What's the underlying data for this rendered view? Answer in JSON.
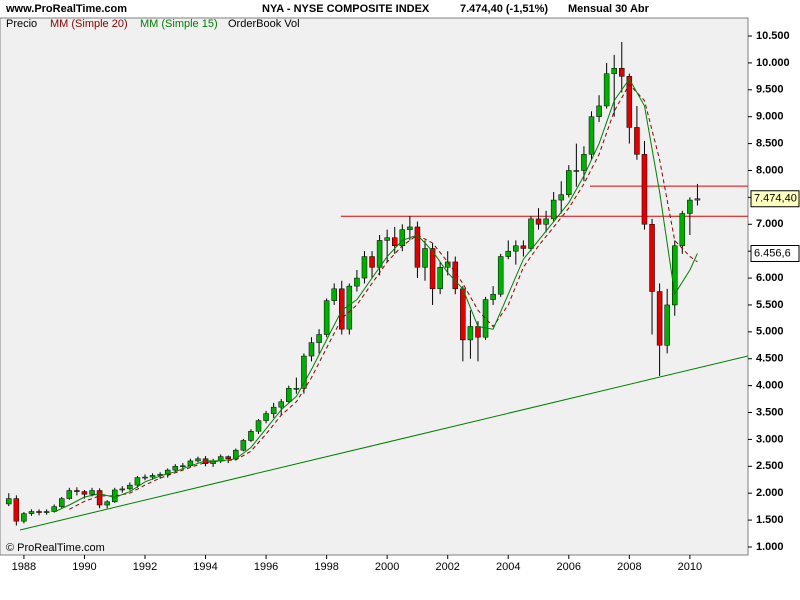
{
  "chart_data": {
    "type": "candlestick",
    "site": "www.ProRealTime.com",
    "title": "NYA - NYSE COMPOSITE INDEX",
    "last": "7.474,40 (-1,51%)",
    "period": "Mensual  30 Abr",
    "copyright": "© ProRealTime.com",
    "extra_legend": "OrderBook Vol",
    "candles": {
      "name": "Precio",
      "up_color": "#00b000",
      "down_color": "#e00000",
      "x": [
        1987.5,
        1987.75,
        1988,
        1988.25,
        1988.5,
        1988.75,
        1989,
        1989.25,
        1989.5,
        1989.75,
        1990,
        1990.25,
        1990.5,
        1990.75,
        1991,
        1991.25,
        1991.5,
        1991.75,
        1992,
        1992.25,
        1992.5,
        1992.75,
        1993,
        1993.25,
        1993.5,
        1993.75,
        1994,
        1994.25,
        1994.5,
        1994.75,
        1995,
        1995.25,
        1995.5,
        1995.75,
        1996,
        1996.25,
        1996.5,
        1996.75,
        1997,
        1997.25,
        1997.5,
        1997.75,
        1998,
        1998.25,
        1998.5,
        1998.75,
        1999,
        1999.25,
        1999.5,
        1999.75,
        2000,
        2000.25,
        2000.5,
        2000.75,
        2001,
        2001.25,
        2001.5,
        2001.75,
        2002,
        2002.25,
        2002.5,
        2002.75,
        2003,
        2003.25,
        2003.5,
        2003.75,
        2004,
        2004.25,
        2004.5,
        2004.75,
        2005,
        2005.25,
        2005.5,
        2005.75,
        2006,
        2006.25,
        2006.5,
        2006.75,
        2007,
        2007.25,
        2007.5,
        2007.75,
        2008,
        2008.25,
        2008.5,
        2008.75,
        2009,
        2009.25,
        2009.5,
        2009.75,
        2010,
        2010.25
      ],
      "open": [
        1800,
        1900,
        1480,
        1620,
        1660,
        1640,
        1660,
        1750,
        1900,
        2050,
        2030,
        1980,
        2050,
        1780,
        1840,
        2060,
        2080,
        2150,
        2290,
        2300,
        2330,
        2350,
        2430,
        2500,
        2510,
        2600,
        2640,
        2550,
        2600,
        2680,
        2640,
        2800,
        2980,
        3150,
        3350,
        3480,
        3600,
        3700,
        3950,
        3950,
        4550,
        4800,
        4950,
        5580,
        5800,
        5050,
        5850,
        6000,
        6400,
        6200,
        6700,
        6750,
        6600,
        6900,
        6950,
        6200,
        6550,
        5800,
        6200,
        6300,
        5800,
        4850,
        5100,
        4900,
        5600,
        5700,
        6400,
        6500,
        6600,
        6550,
        7100,
        7000,
        7100,
        7450,
        7550,
        8000,
        8000,
        8300,
        9000,
        9200,
        9800,
        9900,
        9750,
        8800,
        8300,
        7000,
        5750,
        4750,
        5500,
        6600,
        7200,
        7450
      ],
      "high": [
        2000,
        1960,
        1650,
        1700,
        1700,
        1700,
        1790,
        1930,
        2100,
        2110,
        2060,
        2100,
        2090,
        1870,
        2100,
        2130,
        2200,
        2320,
        2350,
        2370,
        2390,
        2460,
        2540,
        2560,
        2640,
        2680,
        2690,
        2640,
        2720,
        2700,
        2830,
        3010,
        3190,
        3380,
        3530,
        3680,
        3750,
        4000,
        4150,
        4600,
        4900,
        5050,
        5620,
        5900,
        5950,
        5900,
        6150,
        6500,
        6500,
        6800,
        6900,
        6950,
        7000,
        7150,
        7050,
        6700,
        6650,
        6300,
        6500,
        6400,
        5850,
        5400,
        5200,
        5650,
        5850,
        6450,
        6700,
        6700,
        6700,
        7150,
        7300,
        7250,
        7600,
        7800,
        8100,
        8500,
        8450,
        9100,
        9400,
        10000,
        10150,
        10390,
        9800,
        9200,
        8550,
        7100,
        5900,
        5800,
        6700,
        7250,
        7500,
        7750
      ],
      "low": [
        1760,
        1400,
        1440,
        1580,
        1590,
        1600,
        1640,
        1720,
        1880,
        1960,
        1900,
        1940,
        1720,
        1720,
        1820,
        2010,
        2050,
        2100,
        2240,
        2250,
        2270,
        2290,
        2400,
        2450,
        2480,
        2570,
        2500,
        2490,
        2560,
        2560,
        2610,
        2780,
        2950,
        3100,
        3300,
        3400,
        3450,
        3680,
        3850,
        3850,
        4450,
        4600,
        4900,
        5500,
        4950,
        4950,
        5750,
        5900,
        6000,
        6050,
        6300,
        6450,
        6500,
        6700,
        6000,
        5950,
        5500,
        5700,
        6050,
        5700,
        4450,
        4500,
        4450,
        4850,
        5500,
        5650,
        6350,
        6250,
        6400,
        6500,
        6900,
        6850,
        7050,
        7200,
        7500,
        7700,
        7800,
        8200,
        8900,
        9150,
        9000,
        9450,
        8500,
        8200,
        6900,
        4950,
        4180,
        4600,
        5300,
        6450,
        6800,
        7350
      ],
      "close": [
        1900,
        1480,
        1620,
        1660,
        1640,
        1660,
        1750,
        1900,
        2050,
        2030,
        1980,
        2050,
        1780,
        1840,
        2060,
        2080,
        2150,
        2290,
        2300,
        2330,
        2350,
        2430,
        2500,
        2510,
        2600,
        2640,
        2550,
        2600,
        2680,
        2640,
        2800,
        2980,
        3150,
        3350,
        3480,
        3600,
        3700,
        3950,
        3950,
        4550,
        4800,
        4950,
        5580,
        5800,
        5050,
        5850,
        6000,
        6400,
        6200,
        6700,
        6750,
        6600,
        6900,
        6950,
        6200,
        6550,
        5800,
        6200,
        6300,
        5800,
        4850,
        5100,
        4900,
        5600,
        5700,
        6400,
        6500,
        6600,
        6550,
        7100,
        7000,
        7100,
        7450,
        7550,
        8000,
        8000,
        8300,
        9000,
        9200,
        9800,
        9900,
        9750,
        8800,
        8300,
        7000,
        5750,
        4750,
        5500,
        6600,
        7200,
        7450,
        7474.4
      ]
    },
    "series": [
      {
        "name": "MM (Simple 20)",
        "color": "#8b0000",
        "dashed": true,
        "x": [
          1989.5,
          1990,
          1990.5,
          1991,
          1991.5,
          1992,
          1992.5,
          1993,
          1993.5,
          1994,
          1994.5,
          1995,
          1995.5,
          1996,
          1996.5,
          1997,
          1997.5,
          1998,
          1998.5,
          1999,
          1999.5,
          2000,
          2000.5,
          2001,
          2001.5,
          2002,
          2002.5,
          2003,
          2003.5,
          2004,
          2004.5,
          2005,
          2005.5,
          2006,
          2006.5,
          2007,
          2007.5,
          2008,
          2008.5,
          2009,
          2009.5,
          2010,
          2010.25
        ],
        "values": [
          1700,
          1850,
          1950,
          1950,
          2000,
          2150,
          2280,
          2380,
          2480,
          2570,
          2600,
          2620,
          2780,
          3100,
          3450,
          3700,
          4150,
          4700,
          5250,
          5500,
          5900,
          6300,
          6600,
          6800,
          6650,
          6300,
          5900,
          5400,
          5100,
          5500,
          6200,
          6600,
          6950,
          7300,
          7750,
          8300,
          9100,
          9600,
          9300,
          8200,
          6700,
          6400,
          6300
        ]
      },
      {
        "name": "MM (Simple 15)",
        "color": "#008000",
        "dashed": false,
        "x": [
          1989,
          1989.5,
          1990,
          1990.5,
          1991,
          1991.5,
          1992,
          1992.5,
          1993,
          1993.5,
          1994,
          1994.5,
          1995,
          1995.5,
          1996,
          1996.5,
          1997,
          1997.5,
          1998,
          1998.5,
          1999,
          1999.5,
          2000,
          2000.5,
          2001,
          2001.5,
          2002,
          2002.5,
          2003,
          2003.5,
          2004,
          2004.5,
          2005,
          2005.5,
          2006,
          2006.5,
          2007,
          2007.5,
          2008,
          2008.5,
          2009,
          2009.5,
          2010,
          2010.25
        ],
        "values": [
          1650,
          1780,
          1930,
          1990,
          1920,
          2030,
          2210,
          2320,
          2400,
          2510,
          2600,
          2600,
          2640,
          2850,
          3200,
          3550,
          3800,
          4300,
          4850,
          5400,
          5600,
          6000,
          6400,
          6700,
          6800,
          6500,
          6100,
          5800,
          5100,
          5050,
          5700,
          6350,
          6700,
          7050,
          7400,
          7900,
          8500,
          9300,
          9700,
          9200,
          7600,
          5700,
          6150,
          6456.6
        ]
      }
    ],
    "lines": [
      {
        "color": "#e00000",
        "x": [
          1998.47,
          2011.92
        ],
        "y": [
          7150,
          7150
        ]
      },
      {
        "color": "#e00000",
        "x": [
          2006.7,
          2011.92
        ],
        "y": [
          7710,
          7710
        ]
      },
      {
        "color": "#008000",
        "x": [
          1987.87,
          2011.92
        ],
        "y": [
          1316,
          4552
        ]
      }
    ],
    "price_labels": [
      {
        "value": 7474.4,
        "label": "7.474,40",
        "color": "#ffffc0"
      },
      {
        "value": 6456.6,
        "label": "6.456,6",
        "color": "#ffffff"
      }
    ],
    "xlim": [
      1987.21,
      2011.92
    ],
    "xticks": [
      1988,
      1990,
      1992,
      1994,
      1996,
      1998,
      2000,
      2002,
      2004,
      2006,
      2008,
      2010
    ],
    "ylim": [
      851,
      10835
    ],
    "yticks": [
      {
        "value": 1000,
        "label": "1.000"
      },
      {
        "value": 1500,
        "label": "1.500"
      },
      {
        "value": 2000,
        "label": "2.000"
      },
      {
        "value": 2500,
        "label": "2.500"
      },
      {
        "value": 3000,
        "label": "3.000"
      },
      {
        "value": 3500,
        "label": "3.500"
      },
      {
        "value": 4000,
        "label": "4.000"
      },
      {
        "value": 4500,
        "label": "4.500"
      },
      {
        "value": 5000,
        "label": "5.000"
      },
      {
        "value": 5500,
        "label": "5.500"
      },
      {
        "value": 6000,
        "label": "6.000"
      },
      {
        "value": 6500,
        "label": "6.500"
      },
      {
        "value": 7000,
        "label": "7.000"
      },
      {
        "value": 7500,
        "label": "7.500"
      },
      {
        "value": 8000,
        "label": "8.000"
      },
      {
        "value": 8500,
        "label": "8.500"
      },
      {
        "value": 9000,
        "label": "9.000"
      },
      {
        "value": 9500,
        "label": "9.500"
      },
      {
        "value": 10000,
        "label": "10.000"
      },
      {
        "value": 10500,
        "label": "10.500"
      }
    ]
  }
}
